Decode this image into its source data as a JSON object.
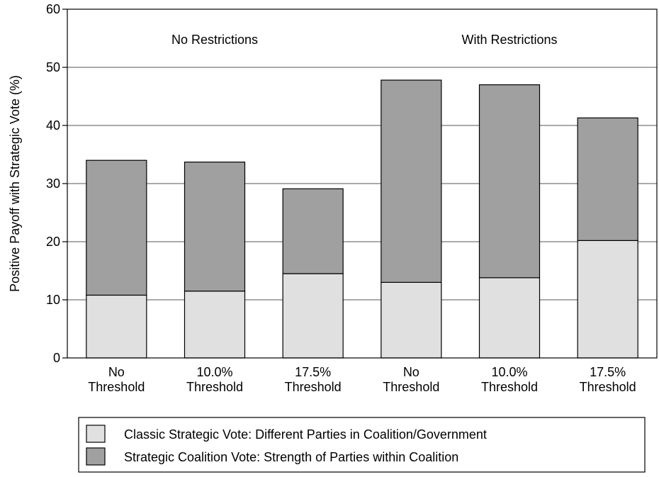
{
  "chart_data": {
    "type": "bar",
    "stacked": true,
    "ylabel": "Positive Payoff with Strategic Vote (%)",
    "xlabel": "",
    "title": "",
    "ylim": [
      0,
      60
    ],
    "yticks": [
      0,
      10,
      20,
      30,
      40,
      50,
      60
    ],
    "grid": true,
    "legend_position": "bottom",
    "categories": [
      [
        "No",
        "Threshold"
      ],
      [
        "10.0%",
        "Threshold"
      ],
      [
        "17.5%",
        "Threshold"
      ],
      [
        "No",
        "Threshold"
      ],
      [
        "10.0%",
        "Threshold"
      ],
      [
        "17.5%",
        "Threshold"
      ]
    ],
    "groups": [
      {
        "label": "No Restrictions",
        "categories": [
          0,
          1,
          2
        ]
      },
      {
        "label": "With Restrictions",
        "categories": [
          3,
          4,
          5
        ]
      }
    ],
    "series": [
      {
        "name": "Classic Strategic Vote: Different Parties in Coalition/Government",
        "color": "#e0e0e0",
        "values": [
          10.8,
          11.5,
          14.5,
          13.0,
          13.8,
          20.2
        ]
      },
      {
        "name": "Strategic Coalition Vote: Strength of Parties within Coalition",
        "color": "#a0a0a0",
        "values": [
          23.2,
          22.2,
          14.6,
          34.8,
          33.2,
          21.1
        ]
      }
    ]
  }
}
